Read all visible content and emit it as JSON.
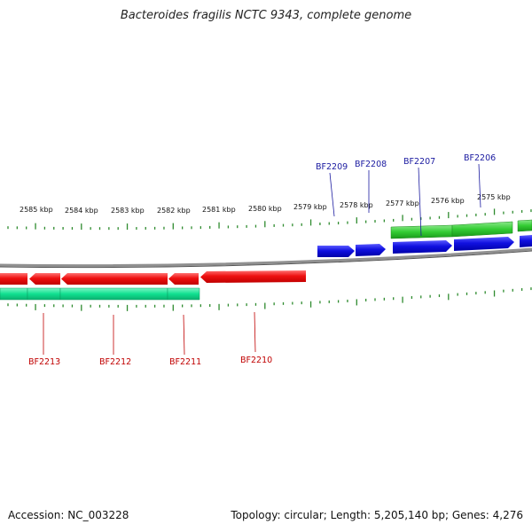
{
  "title": "Bacteroides fragilis NCTC 9343, complete genome",
  "footer": {
    "accession": "Accession: NC_003228",
    "summary": "Topology: circular; Length: 5,205,140 bp; Genes: 4,276"
  },
  "colors": {
    "backbone": "#8a8a8a",
    "tick": "#2e8b2e",
    "forward_label": "#1a1aa0",
    "reverse_label": "#c00000",
    "forward_cds": "#1010e0",
    "reverse_cds": "#ee1010",
    "forward_gene": "#22bb22",
    "reverse_gene": "#10e090"
  },
  "ticks": [
    {
      "label": "2585 kbp"
    },
    {
      "label": "2584 kbp"
    },
    {
      "label": "2583 kbp"
    },
    {
      "label": "2582 kbp"
    },
    {
      "label": "2581 kbp"
    },
    {
      "label": "2580 kbp"
    },
    {
      "label": "2579 kbp"
    },
    {
      "label": "2578 kbp"
    },
    {
      "label": "2577 kbp"
    },
    {
      "label": "2576 kbp"
    },
    {
      "label": "2575 kbp"
    }
  ],
  "forward_genes": [
    {
      "name": "BF2209"
    },
    {
      "name": "BF2208"
    },
    {
      "name": "BF2207"
    },
    {
      "name": "BF2206"
    }
  ],
  "reverse_genes": [
    {
      "name": "BF2213"
    },
    {
      "name": "BF2212"
    },
    {
      "name": "BF2211"
    },
    {
      "name": "BF2210"
    }
  ]
}
